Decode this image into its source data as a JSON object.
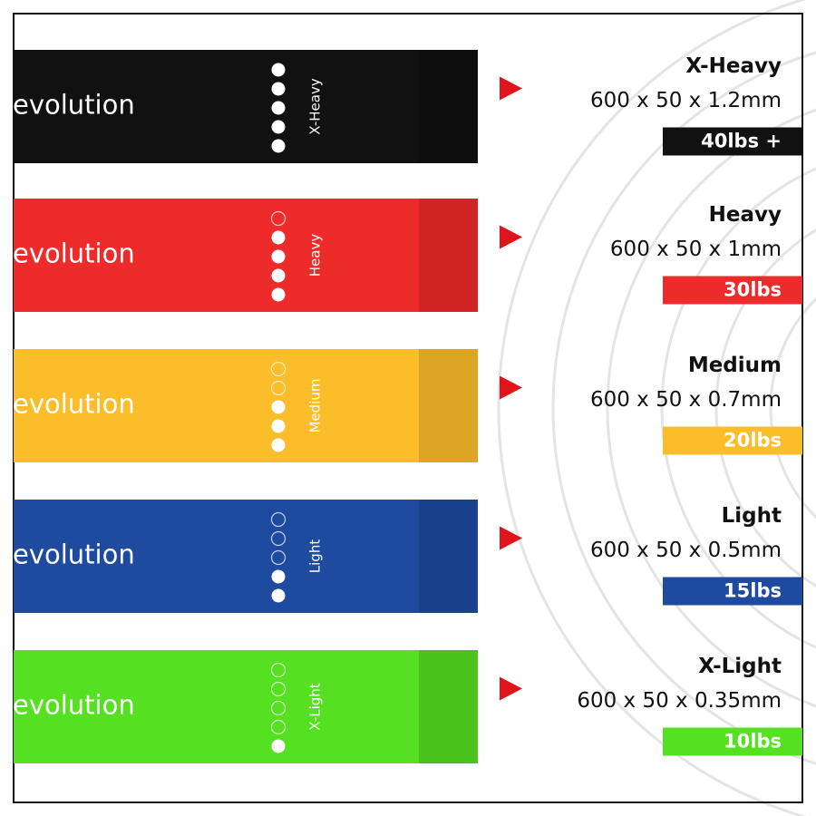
{
  "bands": [
    {
      "brand": "evolution",
      "name": "X-Heavy",
      "dimensions": "600 x 50 x 1.2mm",
      "weight": "40lbs +",
      "level": 5,
      "color": "#111111",
      "badge_color": "#111111"
    },
    {
      "brand": "evolution",
      "name": "Heavy",
      "dimensions": "600 x 50 x 1mm",
      "weight": "30lbs",
      "level": 4,
      "color": "#ee2b2b",
      "badge_color": "#ee2b2b"
    },
    {
      "brand": "evolution",
      "name": "Medium",
      "dimensions": "600 x 50 x 0.7mm",
      "weight": "20lbs",
      "level": 3,
      "color": "#fbbd2a",
      "badge_color": "#fbbd2a"
    },
    {
      "brand": "evolution",
      "name": "Light",
      "dimensions": "600 x 50 x 0.5mm",
      "weight": "15lbs",
      "level": 2,
      "color": "#1e4aa0",
      "badge_color": "#1e4aa0"
    },
    {
      "brand": "evolution",
      "name": "X-Light",
      "dimensions": "600 x 50 x 0.35mm",
      "weight": "10lbs",
      "level": 1,
      "color": "#55e021",
      "badge_color": "#55e021"
    }
  ]
}
